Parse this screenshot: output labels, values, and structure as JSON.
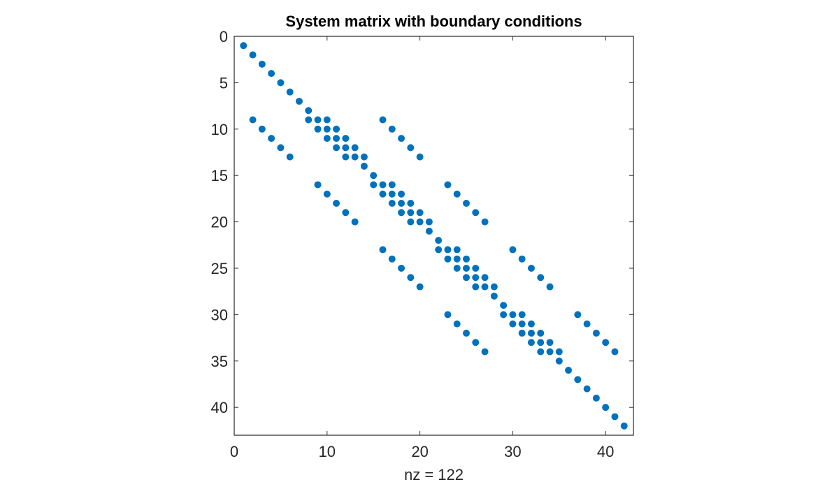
{
  "figure": {
    "background": "#ffffff"
  },
  "chart_data": {
    "type": "scatter",
    "subtype": "sparsity-pattern (spy)",
    "title": "System matrix with boundary conditions",
    "xlabel": "nz = 122",
    "ylabel": "",
    "nz": 122,
    "matrix_size": [
      42,
      42
    ],
    "xlim": [
      0,
      43
    ],
    "ylim": [
      0,
      43
    ],
    "y_axis_reversed": true,
    "xticks": [
      0,
      10,
      20,
      30,
      40
    ],
    "yticks": [
      0,
      5,
      10,
      15,
      20,
      25,
      30,
      35,
      40
    ],
    "grid": false,
    "box": true,
    "marker_color": "#0072BD",
    "marker": "filled circle",
    "block_size": 7,
    "identity_rows": [
      1,
      2,
      3,
      4,
      5,
      6,
      7,
      8,
      14,
      15,
      21,
      22,
      28,
      29,
      35,
      36,
      37,
      38,
      39,
      40,
      41,
      42
    ],
    "stencil_rows": [
      9,
      10,
      11,
      12,
      13,
      16,
      17,
      18,
      19,
      20,
      23,
      24,
      25,
      26,
      27,
      30,
      31,
      32,
      33,
      34
    ],
    "stencil_offsets": [
      -7,
      -1,
      0,
      1,
      7
    ],
    "description": "Nonzeros at (i,i) for identity (boundary) rows; interior rows have 5-point stencil at columns i-7, i-1, i, i+1, i+7"
  }
}
